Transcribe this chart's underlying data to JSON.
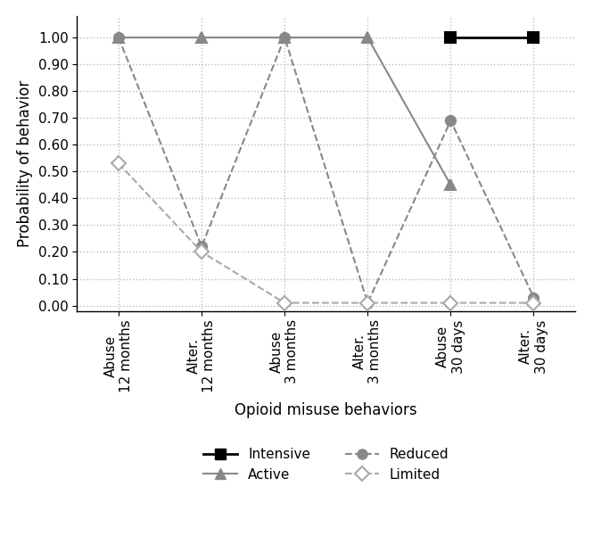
{
  "x_labels": [
    "Abuse\n12 months",
    "Alter.\n12 months",
    "Abuse\n3 months",
    "Alter.\n3 months",
    "Abuse\n30 days",
    "Alter.\n30 days"
  ],
  "series": {
    "Intensive": {
      "values": [
        null,
        null,
        null,
        null,
        1.0,
        1.0
      ],
      "color": "#000000",
      "linestyle": "-",
      "marker": "s",
      "markersize": 8,
      "linewidth": 2.0,
      "zorder": 5,
      "markerfacecolor": "#000000"
    },
    "Active": {
      "values": [
        1.0,
        1.0,
        1.0,
        1.0,
        0.45,
        null
      ],
      "color": "#888888",
      "linestyle": "-",
      "marker": "^",
      "markersize": 8,
      "linewidth": 1.5,
      "zorder": 4,
      "markerfacecolor": "#888888"
    },
    "Reduced": {
      "values": [
        1.0,
        0.22,
        1.0,
        0.01,
        0.69,
        0.03
      ],
      "color": "#888888",
      "linestyle": "--",
      "marker": "o",
      "markersize": 8,
      "linewidth": 1.5,
      "zorder": 3,
      "markerfacecolor": "#888888"
    },
    "Limited": {
      "values": [
        0.53,
        0.2,
        0.01,
        0.01,
        0.01,
        0.01
      ],
      "color": "#aaaaaa",
      "linestyle": "--",
      "marker": "D",
      "markersize": 8,
      "linewidth": 1.5,
      "zorder": 3,
      "markerfacecolor": "white"
    }
  },
  "series_order": [
    "Intensive",
    "Active",
    "Reduced",
    "Limited"
  ],
  "ylabel": "Probability of behavior",
  "xlabel": "Opioid misuse behaviors",
  "ylim": [
    -0.02,
    1.08
  ],
  "yticks": [
    0.0,
    0.1,
    0.2,
    0.3,
    0.4,
    0.5,
    0.6,
    0.7,
    0.8,
    0.9,
    1.0
  ],
  "grid_color": "#bbbbbb",
  "background_color": "#ffffff",
  "tick_fontsize": 11,
  "label_fontsize": 12,
  "legend_fontsize": 11
}
